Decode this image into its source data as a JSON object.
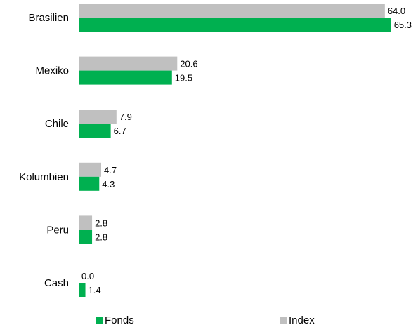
{
  "chart_data": {
    "type": "bar",
    "orientation": "horizontal",
    "categories": [
      "Brasilien",
      "Mexiko",
      "Chile",
      "Kolumbien",
      "Peru",
      "Cash"
    ],
    "series": [
      {
        "name": "Index",
        "values": [
          64.0,
          20.6,
          7.9,
          4.7,
          2.8,
          0.0
        ],
        "color": "#c0c0c0"
      },
      {
        "name": "Fonds",
        "values": [
          65.3,
          19.5,
          6.7,
          4.3,
          2.8,
          1.4
        ],
        "color": "#00b050"
      }
    ],
    "value_labels": {
      "Index": [
        "64.0",
        "20.6",
        "7.9",
        "4.7",
        "2.8",
        "0.0"
      ],
      "Fonds": [
        "65.3",
        "19.5",
        "6.7",
        "4.3",
        "2.8",
        "1.4"
      ]
    },
    "legend": {
      "placement": "bottom",
      "entries": [
        {
          "name": "Fonds",
          "color": "#00b050"
        },
        {
          "name": "Index",
          "color": "#c0c0c0"
        }
      ]
    },
    "grid": false,
    "title": "",
    "xlabel": "",
    "ylabel": ""
  }
}
